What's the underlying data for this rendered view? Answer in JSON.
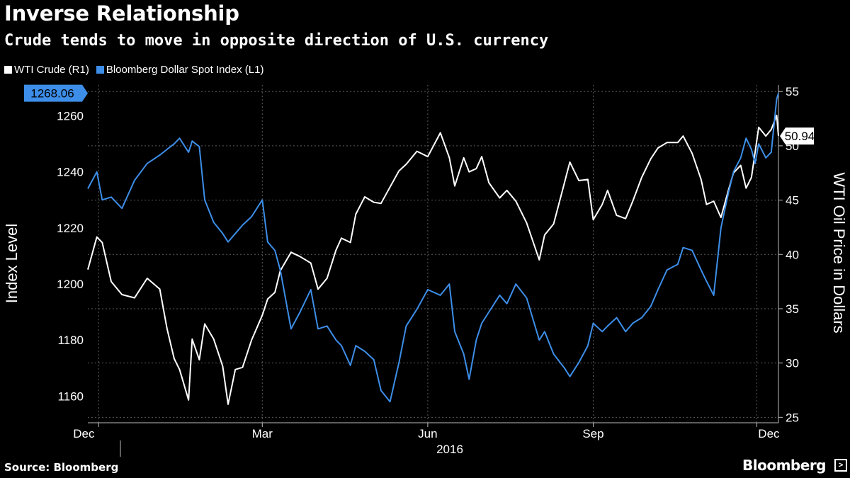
{
  "header": {
    "title": "Inverse Relationship",
    "subtitle": "Crude tends to move in opposite direction of U.S. currency"
  },
  "footer": {
    "source": "Source: Bloomberg",
    "brand": "Bloomberg",
    "brand_icon": "terminal-icon"
  },
  "colors": {
    "background": "#000000",
    "wti": "#ffffff",
    "dollar": "#3d8ee8",
    "grid": "#5a5a5a"
  },
  "chart_data": {
    "type": "line",
    "title": "Inverse Relationship",
    "subtitle": "Crude tends to move in opposite direction of U.S. currency",
    "grid": true,
    "legend_placement": "top-left",
    "x_range": [
      "2015-11-25",
      "2016-12-13"
    ],
    "x_ticks": [
      {
        "date": "2015-12-01",
        "label": "Dec"
      },
      {
        "date": "2016-03-01",
        "label": "Mar"
      },
      {
        "date": "2016-06-01",
        "label": "Jun"
      },
      {
        "date": "2016-09-01",
        "label": "Sep"
      },
      {
        "date": "2016-12-01",
        "label": "Dec"
      }
    ],
    "x_year_label": "2016",
    "y_left": {
      "label": "Index Level",
      "ticks": [
        1160,
        1180,
        1200,
        1220,
        1240,
        1260
      ],
      "range": [
        1150.5,
        1271
      ]
    },
    "y_right": {
      "label": "WTI Oil Price in Dollars",
      "ticks": [
        25,
        30,
        35,
        40,
        45,
        50,
        55
      ],
      "range": [
        24.5,
        55.6
      ]
    },
    "series": [
      {
        "name": "WTI Crude (R1)",
        "axis": "right",
        "last_value_label": "50.94",
        "points": [
          [
            "2015-11-25",
            38.6
          ],
          [
            "2015-11-30",
            41.6
          ],
          [
            "2015-12-03",
            41.1
          ],
          [
            "2015-12-08",
            37.5
          ],
          [
            "2015-12-14",
            36.3
          ],
          [
            "2015-12-21",
            36.0
          ],
          [
            "2015-12-28",
            37.8
          ],
          [
            "2016-01-04",
            36.8
          ],
          [
            "2016-01-08",
            33.2
          ],
          [
            "2016-01-12",
            30.4
          ],
          [
            "2016-01-15",
            29.4
          ],
          [
            "2016-01-20",
            26.6
          ],
          [
            "2016-01-22",
            32.2
          ],
          [
            "2016-01-26",
            30.3
          ],
          [
            "2016-01-29",
            33.6
          ],
          [
            "2016-02-03",
            32.2
          ],
          [
            "2016-02-08",
            29.7
          ],
          [
            "2016-02-11",
            26.2
          ],
          [
            "2016-02-15",
            29.4
          ],
          [
            "2016-02-19",
            29.6
          ],
          [
            "2016-02-24",
            32.1
          ],
          [
            "2016-03-01",
            34.4
          ],
          [
            "2016-03-04",
            35.9
          ],
          [
            "2016-03-08",
            36.5
          ],
          [
            "2016-03-11",
            38.5
          ],
          [
            "2016-03-17",
            40.2
          ],
          [
            "2016-03-22",
            39.8
          ],
          [
            "2016-03-28",
            39.2
          ],
          [
            "2016-04-01",
            36.8
          ],
          [
            "2016-04-06",
            37.8
          ],
          [
            "2016-04-11",
            40.4
          ],
          [
            "2016-04-14",
            41.5
          ],
          [
            "2016-04-19",
            41.1
          ],
          [
            "2016-04-22",
            43.7
          ],
          [
            "2016-04-27",
            45.3
          ],
          [
            "2016-05-02",
            44.8
          ],
          [
            "2016-05-06",
            44.7
          ],
          [
            "2016-05-11",
            46.2
          ],
          [
            "2016-05-16",
            47.7
          ],
          [
            "2016-05-20",
            48.3
          ],
          [
            "2016-05-26",
            49.5
          ],
          [
            "2016-06-01",
            49.0
          ],
          [
            "2016-06-08",
            51.2
          ],
          [
            "2016-06-13",
            48.9
          ],
          [
            "2016-06-16",
            46.3
          ],
          [
            "2016-06-21",
            48.9
          ],
          [
            "2016-06-24",
            47.6
          ],
          [
            "2016-06-28",
            47.9
          ],
          [
            "2016-07-01",
            49.0
          ],
          [
            "2016-07-05",
            46.6
          ],
          [
            "2016-07-11",
            45.2
          ],
          [
            "2016-07-15",
            45.9
          ],
          [
            "2016-07-20",
            44.9
          ],
          [
            "2016-07-26",
            42.9
          ],
          [
            "2016-08-02",
            39.5
          ],
          [
            "2016-08-05",
            41.8
          ],
          [
            "2016-08-10",
            42.8
          ],
          [
            "2016-08-16",
            46.6
          ],
          [
            "2016-08-19",
            48.5
          ],
          [
            "2016-08-24",
            46.8
          ],
          [
            "2016-08-29",
            46.9
          ],
          [
            "2016-09-01",
            43.2
          ],
          [
            "2016-09-06",
            44.6
          ],
          [
            "2016-09-09",
            45.9
          ],
          [
            "2016-09-14",
            43.6
          ],
          [
            "2016-09-19",
            43.3
          ],
          [
            "2016-09-23",
            44.9
          ],
          [
            "2016-09-28",
            47.1
          ],
          [
            "2016-10-03",
            48.8
          ],
          [
            "2016-10-07",
            49.8
          ],
          [
            "2016-10-12",
            50.3
          ],
          [
            "2016-10-18",
            50.3
          ],
          [
            "2016-10-21",
            50.9
          ],
          [
            "2016-10-26",
            49.3
          ],
          [
            "2016-10-31",
            46.9
          ],
          [
            "2016-11-03",
            44.6
          ],
          [
            "2016-11-07",
            44.9
          ],
          [
            "2016-11-11",
            43.4
          ],
          [
            "2016-11-15",
            45.8
          ],
          [
            "2016-11-18",
            47.5
          ],
          [
            "2016-11-22",
            48.2
          ],
          [
            "2016-11-25",
            46.1
          ],
          [
            "2016-11-28",
            47.1
          ],
          [
            "2016-11-30",
            49.4
          ],
          [
            "2016-12-02",
            51.7
          ],
          [
            "2016-12-06",
            50.9
          ],
          [
            "2016-12-09",
            51.5
          ],
          [
            "2016-12-12",
            52.8
          ],
          [
            "2016-12-13",
            50.9
          ]
        ]
      },
      {
        "name": "Bloomberg Dollar Spot Index (L1)",
        "axis": "left",
        "last_value_label": "1268.06",
        "points": [
          [
            "2015-11-25",
            1234.0
          ],
          [
            "2015-11-30",
            1240.0
          ],
          [
            "2015-12-03",
            1230.0
          ],
          [
            "2015-12-08",
            1231.0
          ],
          [
            "2015-12-14",
            1227.0
          ],
          [
            "2015-12-21",
            1237.0
          ],
          [
            "2015-12-28",
            1243.0
          ],
          [
            "2016-01-04",
            1246.0
          ],
          [
            "2016-01-08",
            1248.0
          ],
          [
            "2016-01-12",
            1250.0
          ],
          [
            "2016-01-15",
            1252.0
          ],
          [
            "2016-01-20",
            1247.0
          ],
          [
            "2016-01-22",
            1251.0
          ],
          [
            "2016-01-26",
            1249.0
          ],
          [
            "2016-01-29",
            1230.0
          ],
          [
            "2016-02-03",
            1222.0
          ],
          [
            "2016-02-08",
            1218.0
          ],
          [
            "2016-02-11",
            1215.0
          ],
          [
            "2016-02-15",
            1218.0
          ],
          [
            "2016-02-19",
            1221.0
          ],
          [
            "2016-02-24",
            1224.0
          ],
          [
            "2016-03-01",
            1230.0
          ],
          [
            "2016-03-04",
            1215.0
          ],
          [
            "2016-03-08",
            1212.0
          ],
          [
            "2016-03-11",
            1205.0
          ],
          [
            "2016-03-17",
            1184.0
          ],
          [
            "2016-03-22",
            1190.0
          ],
          [
            "2016-03-28",
            1198.0
          ],
          [
            "2016-04-01",
            1184.0
          ],
          [
            "2016-04-06",
            1185.0
          ],
          [
            "2016-04-11",
            1180.0
          ],
          [
            "2016-04-14",
            1178.0
          ],
          [
            "2016-04-19",
            1171.0
          ],
          [
            "2016-04-22",
            1178.0
          ],
          [
            "2016-04-27",
            1176.0
          ],
          [
            "2016-05-02",
            1173.0
          ],
          [
            "2016-05-06",
            1162.0
          ],
          [
            "2016-05-11",
            1158.0
          ],
          [
            "2016-05-16",
            1172.0
          ],
          [
            "2016-05-20",
            1185.0
          ],
          [
            "2016-05-26",
            1191.0
          ],
          [
            "2016-06-01",
            1198.0
          ],
          [
            "2016-06-08",
            1196.0
          ],
          [
            "2016-06-13",
            1200.0
          ],
          [
            "2016-06-16",
            1183.0
          ],
          [
            "2016-06-21",
            1175.0
          ],
          [
            "2016-06-24",
            1166.0
          ],
          [
            "2016-06-28",
            1180.0
          ],
          [
            "2016-07-01",
            1186.0
          ],
          [
            "2016-07-05",
            1190.0
          ],
          [
            "2016-07-11",
            1196.0
          ],
          [
            "2016-07-15",
            1193.0
          ],
          [
            "2016-07-20",
            1200.0
          ],
          [
            "2016-07-26",
            1195.0
          ],
          [
            "2016-08-02",
            1180.0
          ],
          [
            "2016-08-05",
            1183.0
          ],
          [
            "2016-08-10",
            1175.0
          ],
          [
            "2016-08-16",
            1170.0
          ],
          [
            "2016-08-19",
            1167.0
          ],
          [
            "2016-08-24",
            1172.0
          ],
          [
            "2016-08-29",
            1178.0
          ],
          [
            "2016-09-01",
            1186.0
          ],
          [
            "2016-09-06",
            1183.0
          ],
          [
            "2016-09-09",
            1185.0
          ],
          [
            "2016-09-14",
            1188.0
          ],
          [
            "2016-09-19",
            1183.0
          ],
          [
            "2016-09-23",
            1186.0
          ],
          [
            "2016-09-28",
            1188.0
          ],
          [
            "2016-10-03",
            1192.0
          ],
          [
            "2016-10-07",
            1198.0
          ],
          [
            "2016-10-12",
            1205.0
          ],
          [
            "2016-10-18",
            1207.0
          ],
          [
            "2016-10-21",
            1213.0
          ],
          [
            "2016-10-26",
            1212.0
          ],
          [
            "2016-10-31",
            1205.0
          ],
          [
            "2016-11-03",
            1201.0
          ],
          [
            "2016-11-07",
            1196.0
          ],
          [
            "2016-11-11",
            1220.0
          ],
          [
            "2016-11-15",
            1232.0
          ],
          [
            "2016-11-18",
            1240.0
          ],
          [
            "2016-11-22",
            1245.0
          ],
          [
            "2016-11-25",
            1252.0
          ],
          [
            "2016-11-28",
            1248.0
          ],
          [
            "2016-11-30",
            1243.0
          ],
          [
            "2016-12-02",
            1250.0
          ],
          [
            "2016-12-06",
            1245.0
          ],
          [
            "2016-12-09",
            1247.0
          ],
          [
            "2016-12-12",
            1266.0
          ],
          [
            "2016-12-13",
            1268.06
          ]
        ]
      }
    ]
  }
}
